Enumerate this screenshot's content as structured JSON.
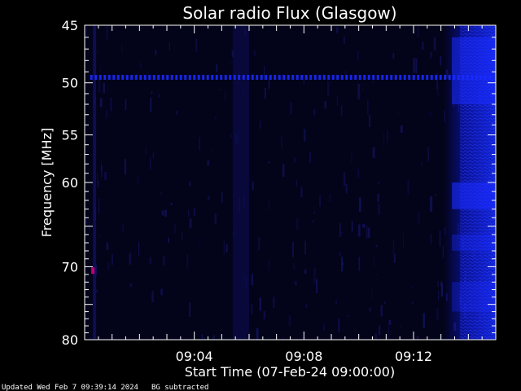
{
  "chart_data": {
    "type": "heatmap",
    "title": "Solar radio Flux (Glasgow)",
    "xlabel": "Start Time (07-Feb-24 09:00:00)",
    "ylabel": "Frequency [MHz]",
    "x_ticks": [
      "09:04",
      "09:08",
      "09:12"
    ],
    "x_tick_minutes": [
      4,
      8,
      12
    ],
    "xlim_minutes": [
      0,
      15
    ],
    "y_ticks": [
      45,
      50,
      55,
      60,
      70,
      80
    ],
    "ylim": [
      45,
      80
    ],
    "y_scale": "log",
    "colors": {
      "background": "#000000",
      "plot_bg": "#03031a",
      "band": "#1a2aff",
      "burst": "#c0007a",
      "axis": "#ffffff"
    },
    "features": {
      "constant_line_mhz": 49.5,
      "constant_line_minute_range": [
        0.2,
        14.8
      ],
      "high_activity_start_minute": 13.1,
      "highlight_spot": {
        "minute": 0.3,
        "mhz": 70.5
      }
    }
  },
  "footer": {
    "updated": "Updated Wed Feb  7 09:39:14 2024",
    "note": "BG subtracted"
  }
}
